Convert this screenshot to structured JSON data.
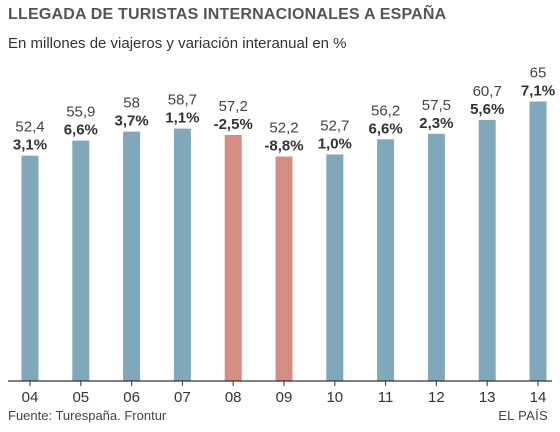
{
  "title": "LLEGADA DE TURISTAS INTERNACIONALES A ESPAÑA",
  "subtitle": "En millones de viajeros y variación interanual en %",
  "footer": {
    "source": "Fuente: Turespaña. Frontur",
    "brand": "EL PAÍS"
  },
  "colors": {
    "positive": "#7fa8bb",
    "negative": "#d48d80",
    "axis": "#333333"
  },
  "chart_data": {
    "type": "bar",
    "title": "LLEGADA DE TURISTAS INTERNACIONALES A ESPAÑA",
    "subtitle": "En millones de viajeros y variación interanual en %",
    "categories": [
      "04",
      "05",
      "06",
      "07",
      "08",
      "09",
      "10",
      "11",
      "12",
      "13",
      "14"
    ],
    "values": [
      52.4,
      55.9,
      58,
      58.7,
      57.2,
      52.2,
      52.7,
      56.2,
      57.5,
      60.7,
      65
    ],
    "value_labels": [
      "52,4",
      "55,9",
      "58",
      "58,7",
      "57,2",
      "52,2",
      "52,7",
      "56,2",
      "57,5",
      "60,7",
      "65"
    ],
    "variation": [
      3.1,
      6.6,
      3.7,
      1.1,
      -2.5,
      -8.8,
      1.0,
      6.6,
      2.3,
      5.6,
      7.1
    ],
    "variation_labels": [
      "3,1%",
      "6,6%",
      "3,7%",
      "1,1%",
      "-2,5%",
      "-8,8%",
      "1,0%",
      "6,6%",
      "2,3%",
      "5,6%",
      "7,1%"
    ],
    "xlabel": "",
    "ylabel": "",
    "grid": false,
    "legend": "none"
  }
}
